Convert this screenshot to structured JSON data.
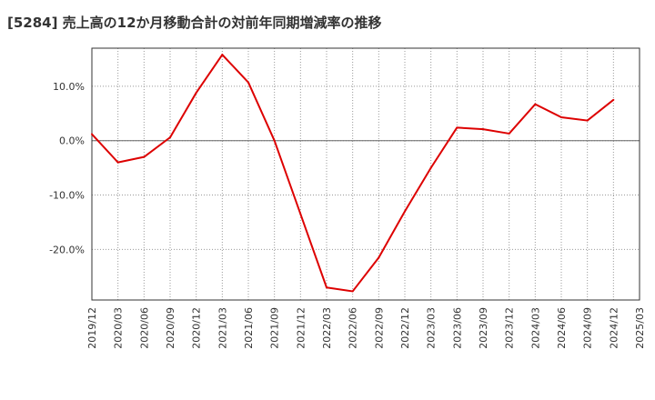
{
  "chart_data": {
    "type": "line",
    "title": "[5284]  売上高の12か月移動合計の対前年同期増減率の推移",
    "xlabel": "",
    "ylabel": "",
    "x": [
      "2019/12",
      "2020/03",
      "2020/06",
      "2020/09",
      "2020/12",
      "2021/03",
      "2021/06",
      "2021/09",
      "2021/12",
      "2022/03",
      "2022/06",
      "2022/09",
      "2022/12",
      "2023/03",
      "2023/06",
      "2023/09",
      "2023/12",
      "2024/03",
      "2024/06",
      "2024/09",
      "2024/12",
      "2025/03"
    ],
    "series": [
      {
        "name": "増減率",
        "color": "#dd0000",
        "values": [
          1.2,
          -4.0,
          -3.0,
          0.6,
          8.8,
          15.8,
          10.7,
          0.0,
          -13.5,
          -27.0,
          -27.7,
          -21.5,
          -13.0,
          -5.0,
          2.4,
          2.1,
          1.3,
          6.7,
          4.3,
          3.7,
          7.5,
          null
        ]
      }
    ],
    "y_ticks": [
      10,
      0,
      -10,
      -20
    ],
    "y_tick_labels": [
      "10.0%",
      "0.0%",
      "-10.0%",
      "-20.0%"
    ],
    "ylim": [
      -29.3,
      17.0
    ],
    "grid": true
  }
}
